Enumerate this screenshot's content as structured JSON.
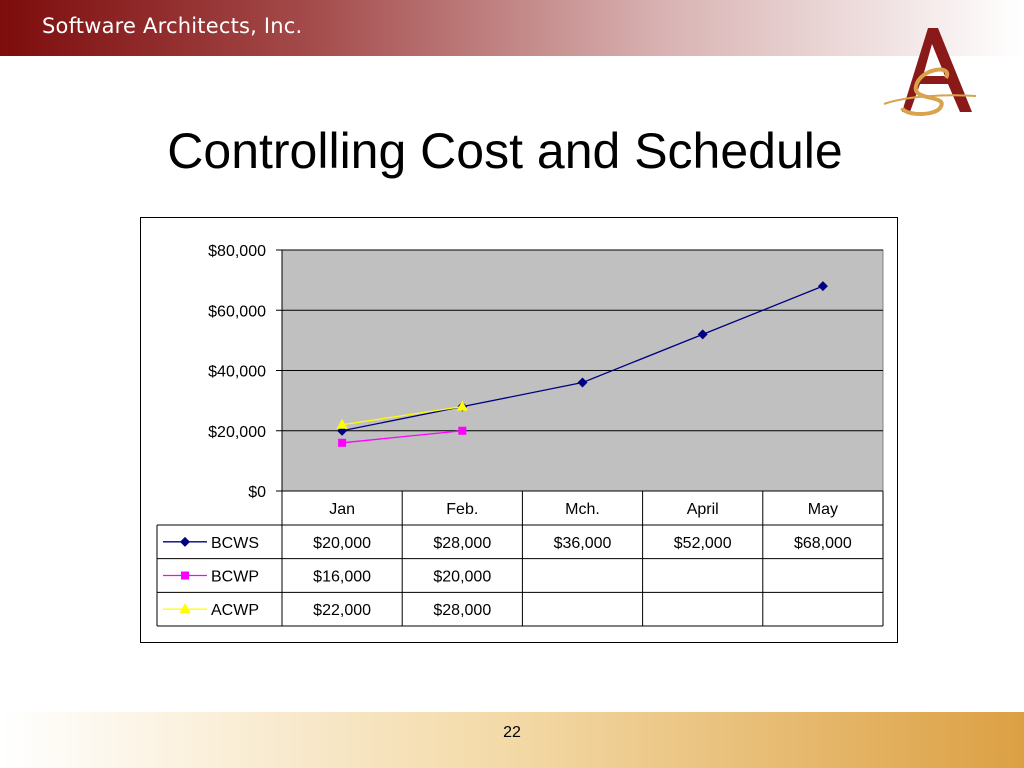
{
  "slide": {
    "brand": "Software Architects, Inc.",
    "title": "Controlling Cost and Schedule",
    "page_number": "22"
  },
  "colors": {
    "header": "#7d0c0c",
    "footer": "#dca043",
    "plot_bg": "#c0c0c0",
    "bcws": "#000080",
    "bcwp": "#ff00ff",
    "acwp": "#ffff00"
  },
  "chart_data": {
    "type": "line",
    "categories": [
      "Jan",
      "Feb.",
      "Mch.",
      "April",
      "May"
    ],
    "ylim": [
      0,
      80000
    ],
    "yticks": [
      0,
      20000,
      40000,
      60000,
      80000
    ],
    "ytick_labels": [
      "$0",
      "$20,000",
      "$40,000",
      "$60,000",
      "$80,000"
    ],
    "grid": true,
    "legend": "data-table",
    "series": [
      {
        "name": "BCWS",
        "marker": "diamond",
        "values": [
          20000,
          28000,
          36000,
          52000,
          68000
        ],
        "labels": [
          "$20,000",
          "$28,000",
          "$36,000",
          "$52,000",
          "$68,000"
        ]
      },
      {
        "name": "BCWP",
        "marker": "square",
        "values": [
          16000,
          20000,
          null,
          null,
          null
        ],
        "labels": [
          "$16,000",
          "$20,000",
          "",
          "",
          ""
        ]
      },
      {
        "name": "ACWP",
        "marker": "triangle",
        "values": [
          22000,
          28000,
          null,
          null,
          null
        ],
        "labels": [
          "$22,000",
          "$28,000",
          "",
          "",
          ""
        ]
      }
    ]
  }
}
